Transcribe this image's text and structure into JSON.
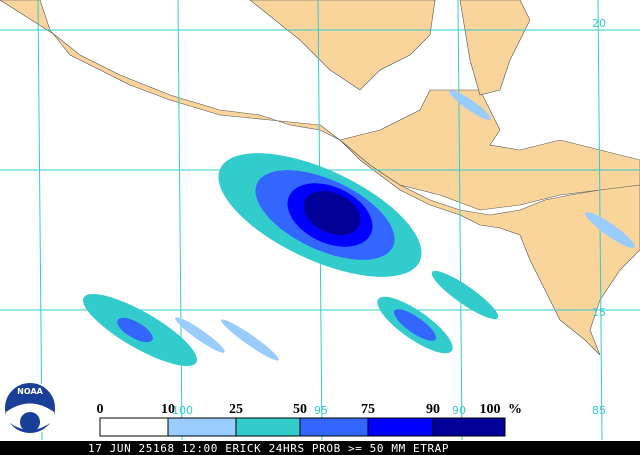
{
  "map": {
    "grid_labels": {
      "longitudes": [
        "100",
        "95",
        "90",
        "85"
      ],
      "latitudes": [
        "20",
        "15"
      ]
    }
  },
  "legend": {
    "labels": [
      "0",
      "10",
      "25",
      "50",
      "75",
      "90",
      "100"
    ],
    "unit": "%"
  },
  "logo": "NOAA",
  "footer": "17 JUN 25168 12:00 ERICK 24HRS PROB >= 50 MM ETRAP"
}
